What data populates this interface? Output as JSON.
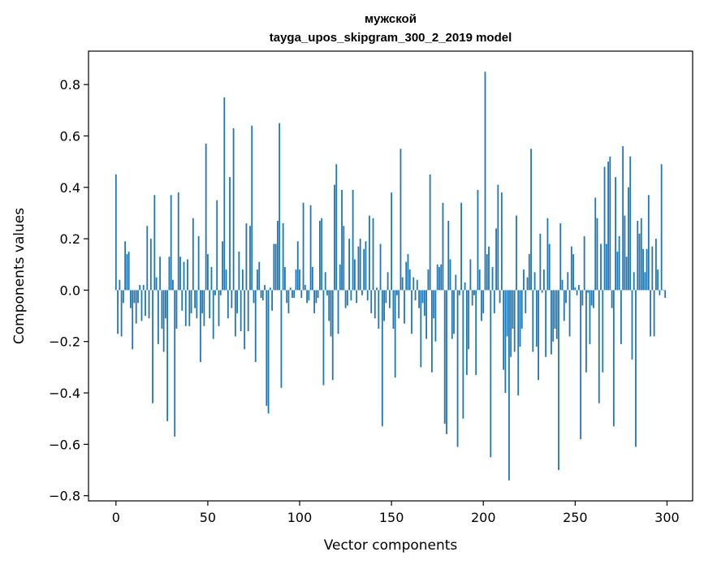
{
  "chart_data": {
    "type": "bar",
    "title_line1": "мужской",
    "title_line2": "tayga_upos_skipgram_300_2_2019 model",
    "xlabel": "Vector components",
    "ylabel": "Components values",
    "xlim": [
      -14.95,
      313.95
    ],
    "ylim": [
      -0.82,
      0.93
    ],
    "xticks": [
      0,
      50,
      100,
      150,
      200,
      250,
      300
    ],
    "xtick_labels": [
      "0",
      "50",
      "100",
      "150",
      "200",
      "250",
      "300"
    ],
    "yticks": [
      -0.8,
      -0.6,
      -0.4,
      -0.2,
      0.0,
      0.2,
      0.4,
      0.6,
      0.8
    ],
    "ytick_labels": [
      "−0.8",
      "−0.6",
      "−0.4",
      "−0.2",
      "0.0",
      "0.2",
      "0.4",
      "0.6",
      "0.8"
    ],
    "bar_color": "#1f77b4",
    "values": [
      0.45,
      -0.17,
      0.04,
      -0.18,
      -0.05,
      0.19,
      0.14,
      0.15,
      -0.07,
      -0.23,
      -0.05,
      -0.13,
      -0.05,
      0.02,
      -0.12,
      0.02,
      -0.1,
      0.25,
      -0.11,
      0.2,
      -0.44,
      0.37,
      0.05,
      -0.21,
      0.13,
      -0.15,
      -0.24,
      -0.11,
      -0.51,
      0.13,
      0.37,
      0.04,
      -0.57,
      -0.15,
      0.38,
      0.13,
      -0.08,
      0.11,
      -0.14,
      0.12,
      -0.14,
      -0.09,
      0.28,
      -0.07,
      -0.11,
      0.21,
      -0.28,
      -0.09,
      -0.14,
      0.57,
      0.14,
      -0.11,
      0.09,
      -0.19,
      -0.02,
      0.35,
      -0.14,
      -0.02,
      0.19,
      0.75,
      0.08,
      -0.11,
      0.44,
      -0.07,
      0.63,
      -0.18,
      -0.09,
      0.15,
      -0.16,
      0.08,
      -0.23,
      0.26,
      -0.16,
      0.25,
      0.64,
      -0.05,
      -0.28,
      0.08,
      0.11,
      -0.03,
      -0.04,
      0.02,
      -0.45,
      -0.48,
      0.01,
      -0.08,
      0.18,
      0.18,
      0.27,
      0.65,
      -0.38,
      0.26,
      0.09,
      -0.05,
      -0.09,
      0.01,
      -0.03,
      -0.03,
      0.08,
      0.19,
      0.08,
      -0.03,
      0.34,
      0.02,
      -0.05,
      -0.04,
      0.33,
      0.09,
      -0.09,
      -0.05,
      -0.03,
      0.27,
      0.28,
      -0.37,
      0.07,
      -0.02,
      -0.12,
      -0.18,
      -0.35,
      0.41,
      0.49,
      -0.17,
      0.1,
      0.39,
      0.25,
      -0.07,
      -0.06,
      0.2,
      -0.04,
      0.39,
      0.12,
      -0.05,
      0.17,
      0.2,
      -0.02,
      0.16,
      0.19,
      -0.04,
      0.29,
      -0.09,
      0.28,
      -0.11,
      0.01,
      -0.15,
      0.18,
      -0.53,
      -0.12,
      -0.05,
      0.07,
      -0.07,
      0.38,
      -0.15,
      -0.34,
      -0.02,
      -0.11,
      0.55,
      0.05,
      -0.13,
      0.11,
      0.14,
      0.08,
      -0.17,
      0.05,
      -0.04,
      0.04,
      -0.07,
      -0.3,
      -0.05,
      -0.1,
      -0.19,
      0.08,
      0.45,
      -0.32,
      -0.11,
      -0.2,
      0.1,
      0.09,
      0.1,
      0.34,
      -0.52,
      -0.56,
      0.27,
      0.12,
      -0.19,
      -0.17,
      0.06,
      -0.61,
      -0.02,
      0.34,
      -0.5,
      0.03,
      -0.33,
      -0.23,
      0.12,
      -0.06,
      -0.02,
      -0.33,
      0.39,
      0.08,
      -0.12,
      -0.09,
      0.85,
      0.14,
      0.17,
      -0.65,
      0.09,
      -0.09,
      0.24,
      0.41,
      -0.05,
      0.38,
      -0.31,
      -0.4,
      -0.18,
      -0.74,
      -0.26,
      -0.15,
      -0.24,
      0.29,
      -0.41,
      -0.22,
      -0.15,
      0.08,
      -0.09,
      0.05,
      0.14,
      0.55,
      -0.24,
      0.07,
      -0.22,
      -0.35,
      0.22,
      -0.01,
      0.08,
      -0.26,
      0.28,
      0.18,
      -0.25,
      -0.2,
      -0.15,
      -0.19,
      -0.7,
      0.26,
      0.04,
      -0.12,
      -0.05,
      0.07,
      -0.18,
      0.17,
      0.14,
      0.01,
      -0.02,
      0.02,
      -0.58,
      -0.06,
      0.21,
      -0.32,
      -0.01,
      -0.21,
      -0.06,
      -0.07,
      0.36,
      0.28,
      -0.44,
      0.18,
      -0.32,
      0.48,
      0.18,
      0.5,
      0.52,
      -0.07,
      -0.53,
      0.44,
      0.15,
      0.21,
      -0.21,
      0.56,
      0.29,
      0.13,
      0.4,
      0.52,
      -0.27,
      0.07,
      -0.61,
      0.27,
      0.22,
      0.28,
      0.16,
      0.07,
      0.16,
      0.37,
      -0.18,
      0.17,
      -0.18,
      0.2,
      0.08,
      -0.02,
      0.49,
      0.0,
      -0.03
    ]
  }
}
